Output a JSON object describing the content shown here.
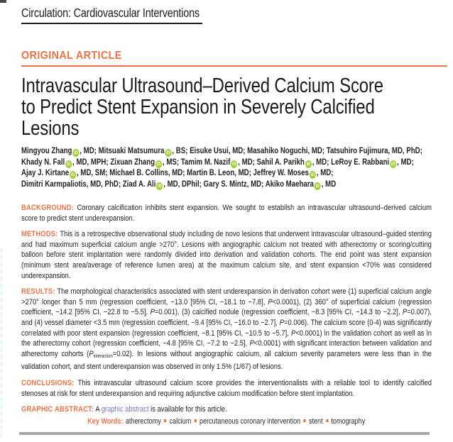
{
  "journal": {
    "name": "Circulation: Cardiovascular Interventions"
  },
  "article": {
    "category": "ORIGINAL ARTICLE",
    "title_lines": [
      "Intravascular Ultrasound–Derived Calcium Score",
      "to Predict Stent Expansion in Severely Calcified",
      "Lesions"
    ]
  },
  "authors": {
    "orcid_icon": "iD",
    "lines": [
      [
        {
          "text": "Mingyou Zhang",
          "orcid": true
        },
        {
          "text": ", MD; "
        },
        {
          "text": "Mitsuaki Matsumura",
          "orcid": true
        },
        {
          "text": ", BS; Eisuke Usui, MD; Masahiko Noguchi, MD; Tatsuhiro Fujimura, MD, PhD;"
        }
      ],
      [
        {
          "text": "Khady N. Fall",
          "orcid": true
        },
        {
          "text": ", MD, MPH; "
        },
        {
          "text": "Zixuan Zhang",
          "orcid": true
        },
        {
          "text": ", MS; "
        },
        {
          "text": "Tamim M. Nazif",
          "orcid": true
        },
        {
          "text": ", MD; "
        },
        {
          "text": "Sahil A. Parikh",
          "orcid": true
        },
        {
          "text": ", MD; "
        },
        {
          "text": "LeRoy E. Rabbani",
          "orcid": true
        },
        {
          "text": ", MD;"
        }
      ],
      [
        {
          "text": "Ajay J. Kirtane",
          "orcid": true
        },
        {
          "text": ", MD, SM; Michael B. Collins, MD; Martin B. Leon, MD; "
        },
        {
          "text": "Jeffrey W. Moses",
          "orcid": true
        },
        {
          "text": ", MD;"
        }
      ],
      [
        {
          "text": "Dimitri Karmpaliotis, MD, PhD; "
        },
        {
          "text": "Ziad A. Ali",
          "orcid": true
        },
        {
          "text": ", MD, DPhil; Gary S. Mintz, MD; "
        },
        {
          "text": "Akiko Maehara",
          "orcid": true
        },
        {
          "text": ", MD"
        }
      ]
    ]
  },
  "abstract": {
    "paragraphs": [
      {
        "label": "BACKGROUND:",
        "segments": [
          {
            "text": "Coronary calcification inhibits stent expansion. We sought to establish an intravascular ultrasound–derived calcium score to predict stent underexpansion."
          }
        ]
      },
      {
        "label": "METHODS:",
        "segments": [
          {
            "text": "This is a retrospective observational study including de novo lesions that underwent intravascular ultrasound–guided stenting and had maximum superficial calcium angle >270°. Lesions with angiographic calcium not treated with atherectomy or scoring/cutting balloon before stent implantation were randomly divided into derivation and validation cohorts. The end point was stent expansion (minimum stent area/average of reference lumen area) at the maximum calcium site, and stent expansion <70% was considered underexpansion."
          }
        ]
      },
      {
        "label": "RESULTS:",
        "segments": [
          {
            "text": "The morphological characteristics associated with stent underexpansion in derivation cohort were (1) superficial calcium angle >270° longer than 5 mm (regression coefficient, −13.0 [95% CI, −18.1 to −7.8], "
          },
          {
            "text": "P",
            "style": "italic"
          },
          {
            "text": "<0.0001), (2) 360° of superficial calcium (regression coefficient, −14.2 [95% CI, −22.8 to −5.5], "
          },
          {
            "text": "P",
            "style": "italic"
          },
          {
            "text": "=0.001), (3) calcified nodule (regression coefficient, −8.3 [95% CI, −14.3 to −2.2], "
          },
          {
            "text": "P",
            "style": "italic"
          },
          {
            "text": "=0.007), and (4) vessel diameter <3.5 mm (regression coefficient, −9.4 [95% CI, −16.0 to −2.7], "
          },
          {
            "text": "P",
            "style": "italic"
          },
          {
            "text": "=0.006). The calcium score (0-4) was significantly correlated with poor stent expansion (regression coefficient, −8.1 [95% CI, −10.5 to −5.7], "
          },
          {
            "text": "P",
            "style": "italic"
          },
          {
            "text": "<0.0001) in the validation cohort as well as in the atherectomy cohort (regression coefficient, −4.8 [95% CI, −7.2 to −2.5], "
          },
          {
            "text": "P",
            "style": "italic"
          },
          {
            "text": "<0.0001) with significant interaction between validation and atherectomy cohorts ("
          },
          {
            "text": "P",
            "style": "italic"
          },
          {
            "text": "interaction",
            "style": "sub"
          },
          {
            "text": "=0.02). In lesions without angiographic calcium, all calcium severity parameters were less than in the validation cohort, and stent underexpansion was observed in only 1.5% (1/67) of lesions."
          }
        ]
      },
      {
        "label": "CONCLUSIONS:",
        "segments": [
          {
            "text": "This intravascular ultrasound calcium score provides the interventionalists with a reliable tool to identify calcified stenoses at risk for stent underexpansion and requiring adjunctive calcium modification before stent implantation."
          }
        ]
      },
      {
        "label": "GRAPHIC ABSTRACT:",
        "segments": [
          {
            "text": "A "
          },
          {
            "text": "graphic abstract",
            "style": "link"
          },
          {
            "text": " is available for this article."
          }
        ]
      }
    ]
  },
  "keywords": {
    "label": "Key Words:",
    "items": [
      "atherectomy",
      "calcium",
      "percutaneous coronary intervention",
      "stent",
      "tomography"
    ]
  },
  "colors": {
    "accent_orange": "#E5764B",
    "orcid_green": "#A6CE39",
    "link_purple": "#7278B8",
    "text_ink": "#231F20",
    "bar_gray": "#A4A6A9"
  }
}
